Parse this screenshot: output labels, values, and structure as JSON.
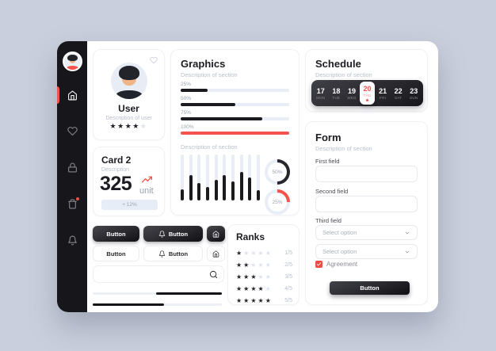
{
  "colors": {
    "accent": "#f4544c",
    "dark": "#17171b",
    "track": "#e9eef6",
    "muted_text": "#b9c0cc",
    "badge_bg": "#e6edf6"
  },
  "sidebar": {
    "items": [
      {
        "icon": "home-icon",
        "active": true
      },
      {
        "icon": "heart-icon",
        "active": false
      },
      {
        "icon": "lock-icon",
        "active": false
      },
      {
        "icon": "trash-icon",
        "active": false,
        "badge": true
      },
      {
        "icon": "bell-icon",
        "active": false
      }
    ]
  },
  "user_card": {
    "title": "User",
    "description": "Description of user",
    "rating": 4,
    "rating_max": 5
  },
  "card2": {
    "title": "Card 2",
    "description": "Description",
    "value": "325",
    "unit": "unit",
    "badge": "+ 12%"
  },
  "graphics": {
    "title": "Graphics",
    "description": "Description of section",
    "progress_bars": [
      {
        "label": "25%",
        "value": 25,
        "color": "#1a1a1f"
      },
      {
        "label": "50%",
        "value": 50,
        "color": "#1a1a1f"
      },
      {
        "label": "75%",
        "value": 75,
        "color": "#1a1a1f"
      },
      {
        "label": "100%",
        "value": 100,
        "color": "#f4544c"
      }
    ],
    "chart_label": "Description of section",
    "chart_data": {
      "type": "bar",
      "values": [
        25,
        55,
        38,
        30,
        45,
        55,
        42,
        62,
        50,
        22
      ],
      "ylim": [
        0,
        100
      ]
    },
    "donuts": [
      {
        "label": "50%",
        "value": 50,
        "color": "#26262c"
      },
      {
        "label": "25%",
        "value": 25,
        "color": "#f4544c"
      }
    ]
  },
  "buttons": {
    "solid": "Button",
    "solid_bell": "Button",
    "outline": "Button",
    "outline_bell": "Button"
  },
  "sliders": [
    {
      "fill_start": 49,
      "fill_end": 100
    },
    {
      "fill_start": 0,
      "fill_end": 55
    }
  ],
  "ranks": {
    "title": "Ranks",
    "rows": [
      {
        "stars": 1,
        "label": "1/5"
      },
      {
        "stars": 2,
        "label": "2/5"
      },
      {
        "stars": 3,
        "label": "3/5"
      },
      {
        "stars": 4,
        "label": "4/5"
      },
      {
        "stars": 5,
        "label": "5/5"
      }
    ]
  },
  "schedule": {
    "title": "Schedule",
    "description": "Description of section",
    "selected_index": 3,
    "days": [
      {
        "num": "17",
        "abbr": "MON"
      },
      {
        "num": "18",
        "abbr": "TUE"
      },
      {
        "num": "19",
        "abbr": "WED"
      },
      {
        "num": "20",
        "abbr": "THU"
      },
      {
        "num": "21",
        "abbr": "FRI"
      },
      {
        "num": "22",
        "abbr": "SAT"
      },
      {
        "num": "23",
        "abbr": "SUN"
      }
    ]
  },
  "form": {
    "title": "Form",
    "description": "Description of section",
    "first_label": "First field",
    "second_label": "Second field",
    "third_label": "Third field",
    "select1_placeholder": "Select option",
    "select2_placeholder": "Select option",
    "agreement": "Agreement",
    "submit": "Button"
  }
}
